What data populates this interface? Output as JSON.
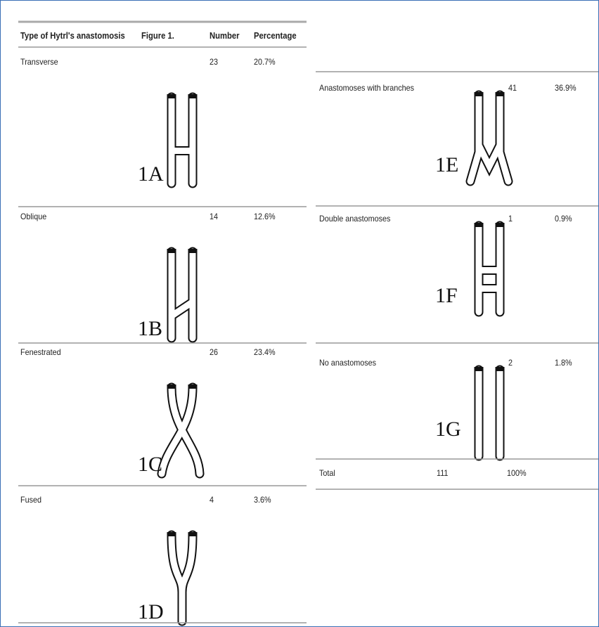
{
  "table": {
    "header": [
      "Type of Hytrl's anastomosis",
      "Figure 1.",
      "Number",
      "Percentage"
    ],
    "rows": [
      {
        "type": "Transverse",
        "figure": "1A",
        "number": "23",
        "percentage": "20.7%"
      },
      {
        "type": "Oblique",
        "figure": "1B",
        "number": "14",
        "percentage": "12.6%"
      },
      {
        "type": "Fenestrated",
        "figure": "1C",
        "number": "26",
        "percentage": "23.4%"
      },
      {
        "type": "Fused",
        "figure": "1D",
        "number": "4",
        "percentage": "3.6%"
      },
      {
        "type": "Anastomoses with branches",
        "figure": "1E",
        "number": "41",
        "percentage": "36.9%"
      },
      {
        "type": "Double anastomoses",
        "figure": "1F",
        "number": "1",
        "percentage": "0.9%"
      },
      {
        "type": "No anastomoses",
        "figure": "1G",
        "number": "2",
        "percentage": "1.8%"
      }
    ],
    "total": {
      "label": "Total",
      "number": "111",
      "percentage": "100%"
    }
  }
}
